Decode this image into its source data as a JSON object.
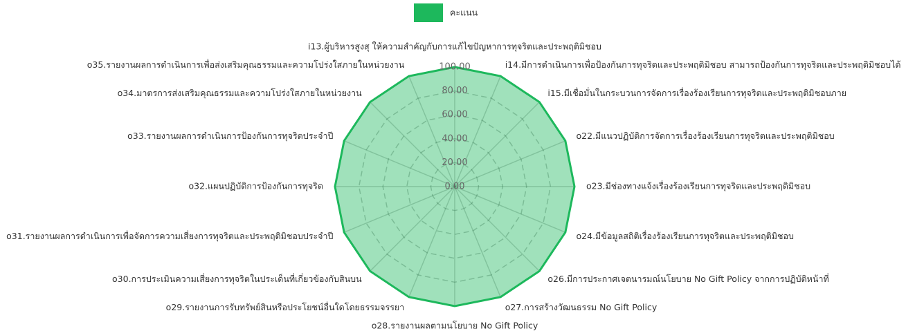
{
  "chart_data": {
    "type": "radar",
    "categories": [
      "i13.ผู้บริหารสูงสุ ให้ความสำคัญกับการแก้ไขปัญหาการทุจริตและประพฤติมิชอบ",
      "i14.มีการดำเนินการเพื่อป้องกันการทุจริตและประพฤติมิชอบ สามารถป้องกันการทุจริตและประพฤติมิชอบได้",
      "i15.มีเชื่อมั่นในกระบวนการจัดการเรื่องร้องเรียนการทุจริตและประพฤติมิชอบภาย",
      "o22.มีแนวปฏิบัติการจัดการเรื่องร้องเรียนการทุจริตและประพฤติมิชอบ",
      "o23.มีช่องทางแจ้งเรื่องร้องเรียนการทุจริตและประพฤติมิชอบ",
      "o24.มีข้อมูลสถิติเรื่องร้องเรียนการทุจริตและประพฤติมิชอบ",
      "o26.มีการประกาศเจตนารมณ์นโยบาย No Gift Policy จากการปฏิบัติหน้าที่",
      "o27.การสร้างวัฒนธรรม No Gift Policy",
      "o28.รายงานผลตามนโยบาย No Gift Policy",
      "o29.รายงานการรับทรัพย์สินหรือประโยชน์อื่นใดโดยธรรมจรรยา",
      "o30.การประเมินความเสี่ยงการทุจริตในประเด็นที่เกี่ยวข้องกับสินบน",
      "o31.รายงานผลการดำเนินการเพื่อจัดการความเสี่ยงการทุจริตและประพฤติมิชอบประจำปี",
      "o32.แผนปฏิบัติการป้องกันการทุจริต",
      "o33.รายงานผลการดำเนินการป้องกันการทุจริตประจำปี",
      "o34.มาตรการส่งเสริมคุณธรรมและความโปร่งใสภายในหน่วยงาน",
      "o35.รายงานผลการดำเนินการเพื่อส่งเสริมคุณธรรมและความโปร่งใสภายในหน่วยงาน"
    ],
    "series": [
      {
        "name": "คะแนน",
        "color": "#1db85c",
        "values": [
          100,
          100,
          100,
          100,
          100,
          100,
          100,
          100,
          100,
          100,
          100,
          100,
          100,
          100,
          100,
          100
        ]
      }
    ],
    "ylim": [
      0,
      100
    ],
    "yticks": [
      {
        "value": 0,
        "label": "0.00"
      },
      {
        "value": 20,
        "label": "20.00"
      },
      {
        "value": 40,
        "label": "40.00"
      },
      {
        "value": 60,
        "label": "60.00"
      },
      {
        "value": 80,
        "label": "80.00"
      },
      {
        "value": 100,
        "label": "100.00"
      }
    ],
    "legend": "top"
  }
}
